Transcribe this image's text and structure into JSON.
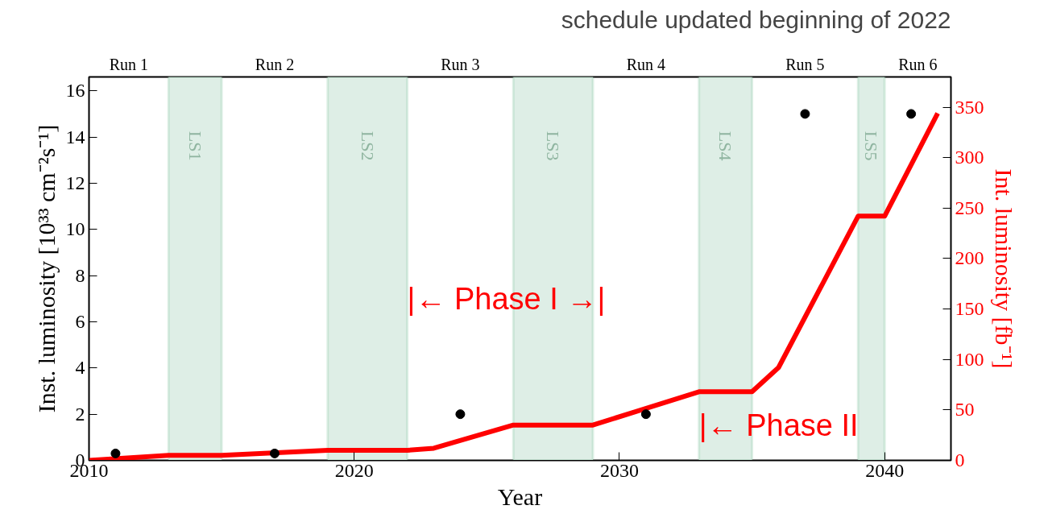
{
  "chart_data": {
    "type": "line",
    "title": "schedule updated beginning of 2022",
    "xlabel": "Year",
    "ylabel": "Inst. luminosity [10³³ cm⁻²s⁻¹]",
    "y2label": "Int. luminosity [fb⁻¹]",
    "series": [
      {
        "type": "scatter",
        "marker": "circle",
        "color": "#000000",
        "x": [
          2011,
          2017,
          2024,
          2031,
          2037,
          2041
        ],
        "values": [
          0.3,
          0.3,
          2,
          2,
          15,
          15
        ]
      },
      {
        "axis": "y2",
        "marker": "none",
        "color": "#ff0000",
        "x": [
          2010,
          2013,
          2015,
          2019,
          2022,
          2023,
          2026,
          2029,
          2033,
          2035,
          2036,
          2039,
          2040,
          2042
        ],
        "values": [
          0,
          5,
          5,
          10,
          10,
          12,
          35,
          35,
          68,
          68,
          92,
          242,
          242,
          344
        ]
      }
    ],
    "xlim": [
      2010,
      2042.5
    ],
    "xticks": [
      2010,
      2020,
      2030,
      2040
    ],
    "ylim": [
      0,
      16.6
    ],
    "yticks": [
      0,
      2,
      4,
      6,
      8,
      10,
      12,
      14,
      16
    ],
    "y2lim": [
      0,
      380
    ],
    "y2ticks": [
      0,
      50,
      100,
      150,
      200,
      250,
      300,
      350
    ],
    "bands": [
      {
        "axis": "x",
        "from": 2013,
        "to": 2015,
        "label": "LS1",
        "color": "#deeee6"
      },
      {
        "axis": "x",
        "from": 2019,
        "to": 2022,
        "label": "LS2",
        "color": "#deeee6"
      },
      {
        "axis": "x",
        "from": 2026,
        "to": 2029,
        "label": "LS3",
        "color": "#deeee6"
      },
      {
        "axis": "x",
        "from": 2033,
        "to": 2035,
        "label": "LS4",
        "color": "#deeee6"
      },
      {
        "axis": "x",
        "from": 2039,
        "to": 2040,
        "label": "LS5",
        "color": "#deeee6"
      }
    ],
    "annotations": [
      {
        "text": "|←  Phase I  →|",
        "x": 2022,
        "y": 7
      },
      {
        "text": "|← Phase II",
        "x": 2033,
        "y": 1.5
      },
      "Run 1",
      "Run 2",
      "Run 3",
      "Run 4",
      "Run 5",
      "Run 6"
    ],
    "grid": false,
    "line_style": "solid"
  }
}
